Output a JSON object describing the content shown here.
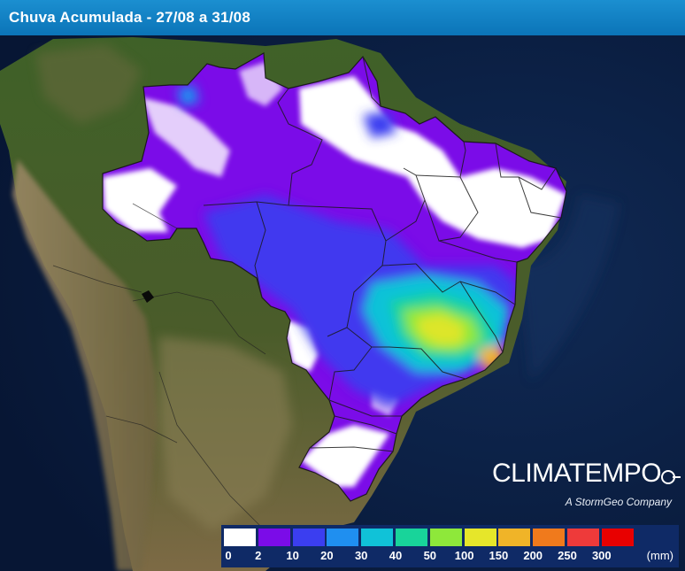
{
  "header": {
    "title": "Chuva Acumulada - 27/08 a 31/08"
  },
  "brand": {
    "name": "CLIMATEMPO",
    "tagline": "A StormGeo Company",
    "logo_icon": "arrow-circle-icon"
  },
  "legend": {
    "unit": "(mm)",
    "bins": [
      {
        "label": "0",
        "color": "#ffffff"
      },
      {
        "label": "2",
        "color": "#7b0ce8"
      },
      {
        "label": "10",
        "color": "#3b3ef0"
      },
      {
        "label": "20",
        "color": "#1f8ff0"
      },
      {
        "label": "30",
        "color": "#10c2d8"
      },
      {
        "label": "40",
        "color": "#18d49a"
      },
      {
        "label": "50",
        "color": "#8ee83a"
      },
      {
        "label": "100",
        "color": "#e6e62a"
      },
      {
        "label": "150",
        "color": "#f0b428"
      },
      {
        "label": "200",
        "color": "#f07a1c"
      },
      {
        "label": "250",
        "color": "#ee3a3a"
      },
      {
        "label": "300",
        "color": "#e80000"
      }
    ]
  },
  "colors": {
    "ocean": "#0c2146",
    "land_forest": "#3d5b22",
    "land_arid": "#8c7a55",
    "state_border": "#1a1a1a"
  }
}
